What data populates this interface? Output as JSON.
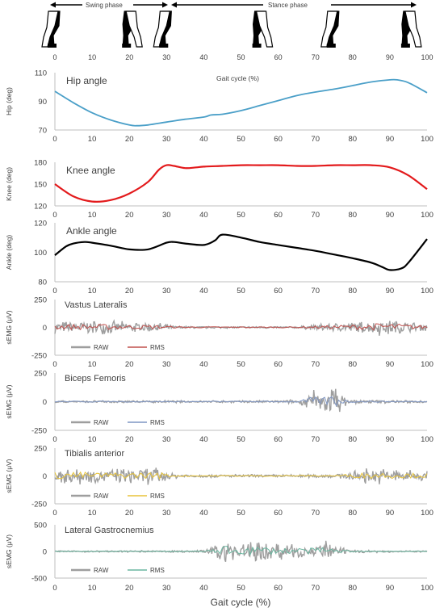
{
  "header": {
    "swing_label": "Swing phase",
    "stance_label": "Stance phase",
    "icon": "walking-figure-icon",
    "figure_positions_pct": [
      0,
      20,
      30,
      55,
      75,
      95
    ]
  },
  "xaxis": {
    "ticks": [
      "0",
      "10",
      "20",
      "30",
      "40",
      "50",
      "60",
      "70",
      "80",
      "90",
      "100"
    ],
    "label": "Gait cycle (%)",
    "inline_label": "Gait cycle (%)"
  },
  "colors": {
    "hip": "#4a9fc8",
    "knee": "#e31a1c",
    "ankle": "#000000",
    "raw": "#9e9e9e",
    "rms_vl": "#c0504d",
    "rms_bf": "#7f96c4",
    "rms_ta": "#e8c43a",
    "rms_lg": "#6ab7a0"
  },
  "chart_data": [
    {
      "type": "line",
      "title": "Hip angle",
      "ylabel": "Hip (deg)",
      "ylim": [
        70,
        110
      ],
      "yticks": [
        "70",
        "90",
        "110"
      ],
      "x": [
        0,
        5,
        10,
        15,
        20,
        22,
        25,
        30,
        35,
        40,
        42,
        45,
        50,
        55,
        60,
        65,
        70,
        75,
        80,
        85,
        90,
        92,
        95,
        100
      ],
      "series": [
        {
          "values": [
            97,
            89,
            82,
            77,
            73.5,
            73,
            73.5,
            75.5,
            77.5,
            79,
            80.5,
            81,
            83.5,
            87,
            90.5,
            94,
            96.5,
            98.5,
            101,
            103.5,
            105,
            105,
            103,
            96
          ],
          "color_key": "hip"
        }
      ]
    },
    {
      "type": "line",
      "title": "Knee angle",
      "ylabel": "Knee (deg)",
      "ylim": [
        120,
        180
      ],
      "yticks": [
        "120",
        "150",
        "180"
      ],
      "x": [
        0,
        5,
        10,
        15,
        20,
        25,
        28,
        30,
        32,
        35,
        38,
        40,
        45,
        50,
        55,
        60,
        65,
        70,
        75,
        80,
        85,
        90,
        95,
        100
      ],
      "series": [
        {
          "values": [
            150,
            133,
            126,
            128,
            137,
            153,
            170,
            176,
            175,
            172,
            173,
            174,
            175,
            176,
            176,
            176,
            175,
            175,
            176,
            176,
            176,
            173,
            162,
            143
          ],
          "color_key": "knee"
        }
      ]
    },
    {
      "type": "line",
      "title": "Ankle angle",
      "ylabel": "Ankle (deg)",
      "ylim": [
        80,
        120
      ],
      "yticks": [
        "80",
        "100",
        "120"
      ],
      "x": [
        0,
        3,
        5,
        8,
        10,
        15,
        20,
        25,
        30,
        32,
        35,
        40,
        43,
        45,
        50,
        55,
        60,
        65,
        70,
        75,
        80,
        85,
        88,
        90,
        93,
        95,
        100
      ],
      "series": [
        {
          "values": [
            98,
            104,
            106,
            107,
            106.5,
            104.5,
            102,
            102,
            106.5,
            107,
            106,
            105,
            108,
            112,
            110,
            107,
            105,
            103,
            101,
            98.5,
            96,
            93,
            90,
            88,
            89,
            93,
            109
          ],
          "color_key": "ankle"
        }
      ]
    },
    {
      "type": "line",
      "title": "Vastus Lateralis",
      "ylabel": "sEMG (μV)",
      "ylim": [
        -250,
        250
      ],
      "yticks": [
        "-250",
        "0",
        "250"
      ],
      "legend": [
        "RAW",
        "RMS"
      ],
      "rms_color_key": "rms_vl",
      "raw_amplitude_envelope": {
        "x": [
          0,
          10,
          20,
          28,
          32,
          40,
          65,
          70,
          78,
          85,
          88,
          92,
          100
        ],
        "amp": [
          60,
          70,
          55,
          50,
          15,
          10,
          10,
          30,
          55,
          65,
          90,
          75,
          35
        ]
      },
      "rms_envelope": {
        "x": [
          0,
          10,
          20,
          28,
          32,
          40,
          65,
          70,
          78,
          85,
          88,
          92,
          100
        ],
        "amp": [
          25,
          30,
          22,
          20,
          8,
          6,
          6,
          12,
          22,
          30,
          38,
          32,
          15
        ]
      }
    },
    {
      "type": "line",
      "title": "Biceps Femoris",
      "ylabel": "sEMG (μV)",
      "ylim": [
        -250,
        250
      ],
      "yticks": [
        "-250",
        "0",
        "250"
      ],
      "legend": [
        "RAW",
        "RMS"
      ],
      "rms_color_key": "rms_bf",
      "raw_amplitude_envelope": {
        "x": [
          0,
          20,
          40,
          60,
          66,
          69,
          72,
          74,
          75.5,
          77,
          80,
          90,
          100
        ],
        "amp": [
          10,
          12,
          10,
          12,
          25,
          110,
          90,
          160,
          170,
          70,
          20,
          15,
          12
        ]
      },
      "rms_envelope": {
        "x": [
          0,
          20,
          40,
          60,
          66,
          69,
          72,
          74,
          75.5,
          77,
          80,
          90,
          100
        ],
        "amp": [
          5,
          5,
          5,
          5,
          10,
          40,
          35,
          60,
          65,
          25,
          8,
          6,
          5
        ]
      }
    },
    {
      "type": "line",
      "title": "Tibialis anterior",
      "ylabel": "sEMG (μV)",
      "ylim": [
        -250,
        250
      ],
      "yticks": [
        "-250",
        "0",
        "250"
      ],
      "legend": [
        "RAW",
        "RMS"
      ],
      "rms_color_key": "rms_ta",
      "raw_amplitude_envelope": {
        "x": [
          0,
          5,
          10,
          20,
          25,
          28,
          32,
          40,
          60,
          75,
          80,
          85,
          90,
          95,
          100
        ],
        "amp": [
          90,
          100,
          70,
          75,
          85,
          90,
          25,
          15,
          15,
          20,
          45,
          90,
          75,
          65,
          60
        ]
      },
      "rms_envelope": {
        "x": [
          0,
          5,
          10,
          20,
          25,
          28,
          32,
          40,
          60,
          75,
          80,
          85,
          90,
          95,
          100
        ],
        "amp": [
          35,
          40,
          28,
          30,
          32,
          35,
          10,
          6,
          6,
          8,
          18,
          35,
          30,
          25,
          22
        ]
      }
    },
    {
      "type": "line",
      "title": "Lateral Gastrocnemius",
      "ylabel": "sEMG (μV)",
      "ylim": [
        -500,
        500
      ],
      "yticks": [
        "-500",
        "0",
        "500"
      ],
      "legend": [
        "RAW",
        "RMS"
      ],
      "rms_color_key": "rms_lg",
      "raw_amplitude_envelope": {
        "x": [
          0,
          20,
          38,
          42,
          46,
          50,
          54,
          58,
          62,
          66,
          70,
          72,
          76,
          80,
          90,
          100
        ],
        "amp": [
          15,
          18,
          20,
          80,
          280,
          180,
          270,
          200,
          160,
          180,
          140,
          240,
          90,
          30,
          20,
          15
        ]
      },
      "rms_envelope": {
        "x": [
          0,
          20,
          38,
          42,
          46,
          50,
          54,
          58,
          62,
          66,
          70,
          72,
          76,
          80,
          90,
          100
        ],
        "amp": [
          6,
          7,
          8,
          30,
          100,
          70,
          100,
          75,
          60,
          70,
          55,
          90,
          35,
          12,
          8,
          6
        ]
      }
    }
  ]
}
